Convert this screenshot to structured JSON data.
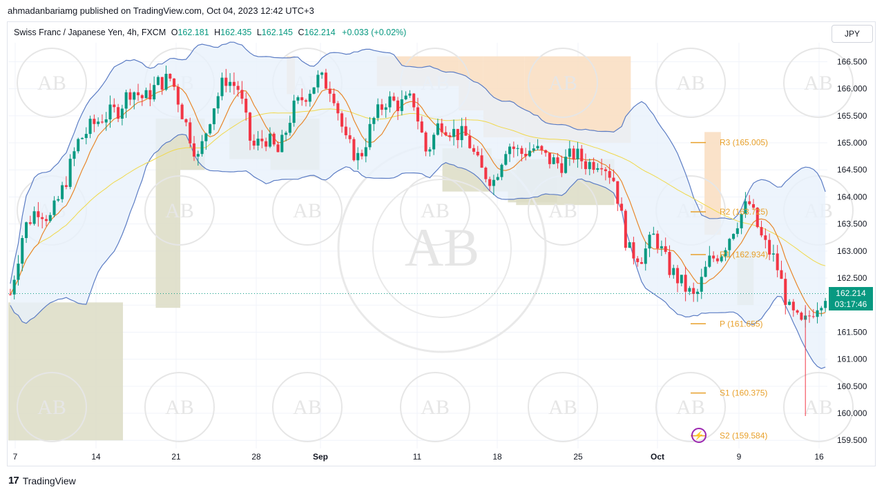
{
  "header": {
    "published_line": "ahmadanbariamg published on TradingView.com, Oct 04, 2023 12:42 UTC+3"
  },
  "legend": {
    "symbol": "Swiss Franc / Japanese Yen, 4h, FXCM",
    "open_label": "O",
    "open": "162.181",
    "high_label": "H",
    "high": "162.435",
    "low_label": "L",
    "low": "162.145",
    "close_label": "C",
    "close": "162.214",
    "change": "+0.033 (+0.02%)"
  },
  "currency_button": "JPY",
  "last_price": {
    "price": "162.214",
    "countdown": "03:17:46"
  },
  "brand": "TradingView",
  "watermark_text": "AB",
  "colors": {
    "up": "#089981",
    "down": "#f23645",
    "band": "#5b7cc4",
    "band_fill": "#e8f1fb",
    "ema_fast": "#e8862a",
    "ema_slow": "#f0d848",
    "pivot": "#e8a02a",
    "supply_zone": "#f9ddc0",
    "demand_zone": "#dcdcc4",
    "price_tag": "#089981"
  },
  "chart_data": {
    "type": "candlestick",
    "timeframe": "4h",
    "ylim": [
      159.35,
      166.85
    ],
    "y_ticks": [
      "166.500",
      "166.000",
      "165.500",
      "165.000",
      "164.500",
      "164.000",
      "163.500",
      "163.000",
      "162.500",
      "162.000",
      "161.500",
      "161.000",
      "160.500",
      "160.000",
      "159.500"
    ],
    "x_ticks": [
      "7",
      "14",
      "21",
      "28",
      "Sep",
      "11",
      "18",
      "25",
      "Oct",
      "9",
      "16"
    ],
    "last_price": 162.214,
    "pivots": [
      {
        "name": "R3",
        "label": "R3 (165.005)",
        "value": 165.005
      },
      {
        "name": "R2",
        "label": "R2 (163.725)",
        "value": 163.725
      },
      {
        "name": "R1",
        "label": "R1 (162.934)",
        "value": 162.934
      },
      {
        "name": "P",
        "label": "P (161.655)",
        "value": 161.655
      },
      {
        "name": "S1",
        "label": "S1 (160.375)",
        "value": 160.375
      },
      {
        "name": "S2",
        "label": "S2 (159.584)",
        "value": 159.584
      }
    ],
    "price_path": [
      [
        7,
        162.2
      ],
      [
        8,
        163.4
      ],
      [
        9,
        163.8
      ],
      [
        10,
        163.6
      ],
      [
        11,
        164.2
      ],
      [
        12,
        165.0
      ],
      [
        13,
        165.3
      ],
      [
        14,
        165.5
      ],
      [
        15,
        165.6
      ],
      [
        16,
        166.0
      ],
      [
        17,
        165.8
      ],
      [
        18,
        166.1
      ],
      [
        19,
        166.2
      ],
      [
        20,
        165.4
      ],
      [
        21,
        164.7
      ],
      [
        22,
        165.6
      ],
      [
        23,
        166.2
      ],
      [
        24,
        166.0
      ],
      [
        25,
        164.9
      ],
      [
        26,
        165.1
      ],
      [
        27,
        164.8
      ],
      [
        28,
        165.6
      ],
      [
        29,
        165.9
      ],
      [
        30,
        166.2
      ],
      [
        31,
        166.0
      ],
      [
        32,
        165.0
      ],
      [
        33,
        164.7
      ],
      [
        34,
        165.4
      ],
      [
        35,
        165.8
      ],
      [
        36,
        165.7
      ],
      [
        37,
        165.8
      ],
      [
        38,
        164.8
      ],
      [
        39,
        165.4
      ],
      [
        40,
        165.2
      ],
      [
        41,
        165.1
      ],
      [
        42,
        164.5
      ],
      [
        43,
        164.3
      ],
      [
        44,
        165.0
      ],
      [
        45,
        164.8
      ],
      [
        46,
        164.9
      ],
      [
        47,
        164.7
      ],
      [
        48,
        164.6
      ],
      [
        49,
        164.8
      ],
      [
        50,
        164.6
      ],
      [
        51,
        164.7
      ],
      [
        52,
        164.3
      ],
      [
        53,
        163.0
      ],
      [
        54,
        162.9
      ],
      [
        55,
        163.3
      ],
      [
        56,
        162.7
      ],
      [
        57,
        162.4
      ],
      [
        58,
        162.1
      ],
      [
        59,
        162.8
      ],
      [
        60,
        163.0
      ],
      [
        61,
        163.5
      ],
      [
        62,
        163.9
      ],
      [
        63,
        163.2
      ],
      [
        64,
        162.8
      ],
      [
        65,
        161.9
      ],
      [
        66,
        161.6
      ],
      [
        67,
        162.0
      ],
      [
        68,
        162.3
      ]
    ],
    "bollinger": {
      "upper_peak": 166.5,
      "lower_trough": 161.5
    }
  }
}
